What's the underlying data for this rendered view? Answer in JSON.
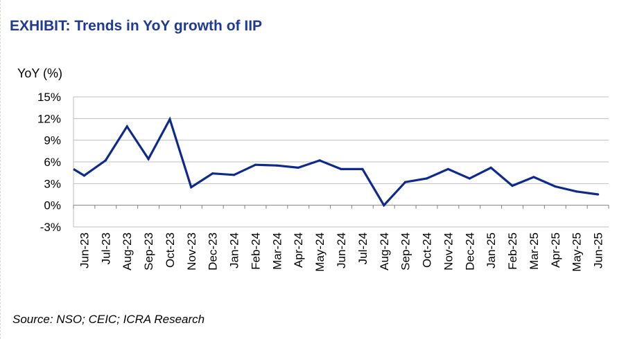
{
  "chart_data": {
    "type": "line",
    "title": "EXHIBIT: Trends in YoY growth of IIP",
    "ylabel": "YoY (%)",
    "xlabel": "",
    "ylim": [
      -3,
      15
    ],
    "yticks": [
      15,
      12,
      9,
      6,
      3,
      0,
      -3
    ],
    "ytick_labels": [
      "15%",
      "12%",
      "9%",
      "6%",
      "3%",
      "0%",
      "-3%"
    ],
    "grid": true,
    "categories": [
      "Jun-23",
      "Jul-23",
      "Aug-23",
      "Sep-23",
      "Oct-23",
      "Nov-23",
      "Dec-23",
      "Jan-24",
      "Feb-24",
      "Mar-24",
      "Apr-24",
      "May-24",
      "Jun-24",
      "Jul-24",
      "Aug-24",
      "Sep-24",
      "Oct-24",
      "Nov-24",
      "Dec-24",
      "Jan-25",
      "Feb-25",
      "Mar-25",
      "Apr-25",
      "May-25",
      "Jun-25"
    ],
    "series": [
      {
        "name": "IIP YoY growth",
        "color": "#0d2a8c",
        "start_value": 5.0,
        "values": [
          4.1,
          6.2,
          10.9,
          6.4,
          11.9,
          2.5,
          4.4,
          4.2,
          5.6,
          5.5,
          5.2,
          6.2,
          5.0,
          5.0,
          0.0,
          3.2,
          3.7,
          5.0,
          3.7,
          5.2,
          2.7,
          3.9,
          2.6,
          1.9,
          1.5
        ]
      }
    ],
    "source": "Source: NSO; CEIC; ICRA Research"
  },
  "colors": {
    "title": "#1f3a93",
    "line": "#0d2a8c",
    "grid": "#bfbfbf",
    "axis": "#7f7f7f"
  }
}
